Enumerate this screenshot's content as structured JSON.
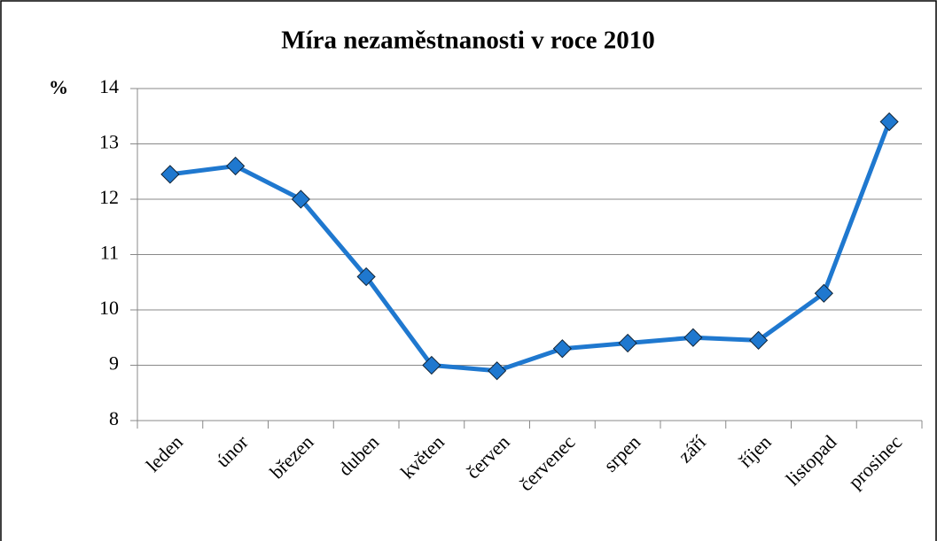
{
  "chart_data": {
    "type": "line",
    "title": "Míra nezaměstnanosti v roce 2010",
    "y_label": "%",
    "categories": [
      "leden",
      "únor",
      "březen",
      "duben",
      "květen",
      "červen",
      "červenec",
      "srpen",
      "září",
      "říjen",
      "listopad",
      "prosinec"
    ],
    "series": [
      {
        "name": "Míra nezaměstnanosti",
        "color": "#1f78cf",
        "values": [
          12.45,
          12.6,
          12.0,
          10.6,
          9.0,
          8.9,
          9.3,
          9.4,
          9.5,
          9.45,
          10.3,
          13.4
        ]
      }
    ],
    "ylim": [
      8,
      14
    ],
    "yticks": [
      8,
      9,
      10,
      11,
      12,
      13,
      14
    ],
    "grid": true
  }
}
